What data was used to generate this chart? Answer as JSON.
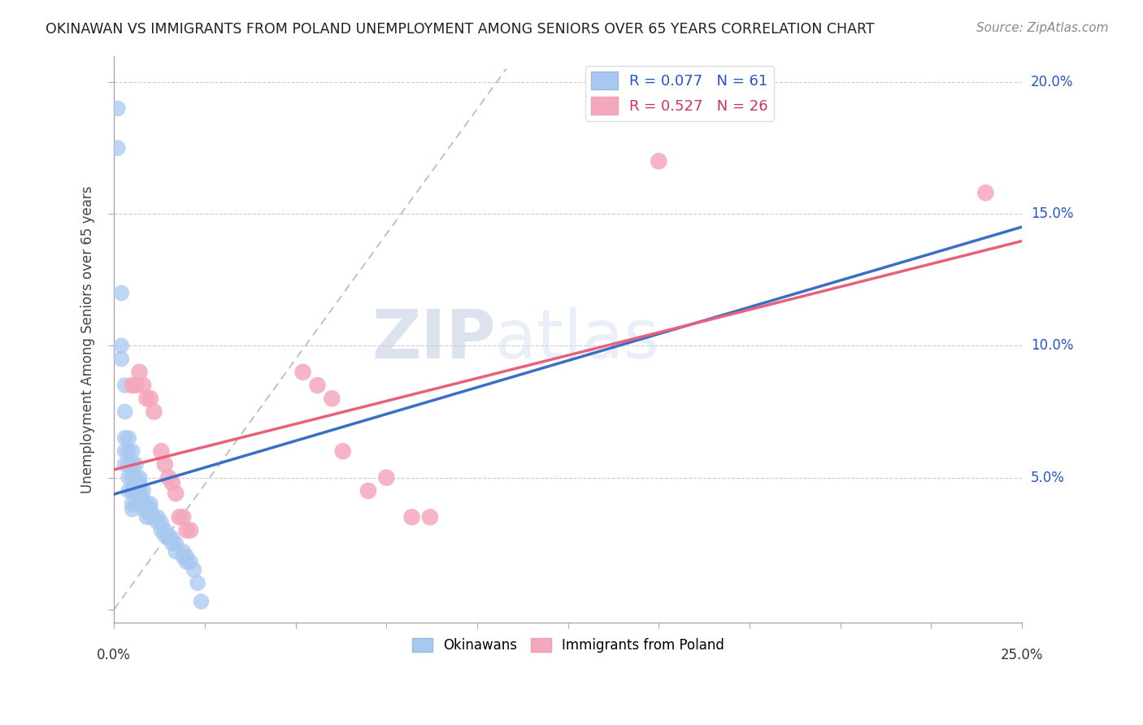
{
  "title": "OKINAWAN VS IMMIGRANTS FROM POLAND UNEMPLOYMENT AMONG SENIORS OVER 65 YEARS CORRELATION CHART",
  "source": "Source: ZipAtlas.com",
  "ylabel_label": "Unemployment Among Seniors over 65 years",
  "xlim": [
    0.0,
    0.25
  ],
  "ylim": [
    -0.005,
    0.21
  ],
  "watermark_zip": "ZIP",
  "watermark_atlas": "atlas",
  "group1_label": "Okinawans",
  "group2_label": "Immigrants from Poland",
  "group1_color": "#a8c8f0",
  "group2_color": "#f4a8bc",
  "group1_line_color": "#3a6fc4",
  "group2_line_color": "#e8607a",
  "group1_R": 0.077,
  "group2_R": 0.527,
  "group1_N": 61,
  "group2_N": 26,
  "okinawan_x": [
    0.001,
    0.001,
    0.002,
    0.002,
    0.002,
    0.003,
    0.003,
    0.003,
    0.003,
    0.003,
    0.004,
    0.004,
    0.004,
    0.004,
    0.004,
    0.005,
    0.005,
    0.005,
    0.005,
    0.005,
    0.005,
    0.005,
    0.006,
    0.006,
    0.006,
    0.006,
    0.007,
    0.007,
    0.007,
    0.007,
    0.008,
    0.008,
    0.008,
    0.008,
    0.009,
    0.009,
    0.009,
    0.01,
    0.01,
    0.01,
    0.011,
    0.012,
    0.012,
    0.013,
    0.013,
    0.014,
    0.014,
    0.015,
    0.015,
    0.016,
    0.016,
    0.017,
    0.017,
    0.019,
    0.019,
    0.02,
    0.02,
    0.021,
    0.022,
    0.023,
    0.024
  ],
  "okinawan_y": [
    0.19,
    0.175,
    0.12,
    0.1,
    0.095,
    0.085,
    0.075,
    0.065,
    0.06,
    0.055,
    0.065,
    0.06,
    0.055,
    0.05,
    0.045,
    0.06,
    0.055,
    0.05,
    0.045,
    0.045,
    0.04,
    0.038,
    0.055,
    0.05,
    0.045,
    0.04,
    0.05,
    0.048,
    0.045,
    0.04,
    0.045,
    0.042,
    0.04,
    0.038,
    0.04,
    0.038,
    0.035,
    0.04,
    0.038,
    0.035,
    0.035,
    0.035,
    0.033,
    0.033,
    0.03,
    0.03,
    0.028,
    0.028,
    0.027,
    0.027,
    0.025,
    0.025,
    0.022,
    0.022,
    0.02,
    0.02,
    0.018,
    0.018,
    0.015,
    0.01,
    0.003
  ],
  "poland_x": [
    0.005,
    0.006,
    0.007,
    0.008,
    0.009,
    0.01,
    0.011,
    0.013,
    0.014,
    0.015,
    0.016,
    0.017,
    0.018,
    0.019,
    0.02,
    0.021,
    0.052,
    0.056,
    0.06,
    0.063,
    0.07,
    0.075,
    0.082,
    0.087,
    0.15,
    0.24
  ],
  "poland_y": [
    0.085,
    0.085,
    0.09,
    0.085,
    0.08,
    0.08,
    0.075,
    0.06,
    0.055,
    0.05,
    0.048,
    0.044,
    0.035,
    0.035,
    0.03,
    0.03,
    0.09,
    0.085,
    0.08,
    0.06,
    0.045,
    0.05,
    0.035,
    0.035,
    0.17,
    0.158
  ],
  "ytick_positions": [
    0.0,
    0.05,
    0.1,
    0.15,
    0.2
  ],
  "ytick_right_labels": [
    "",
    "5.0%",
    "10.0%",
    "15.0%",
    "20.0%"
  ],
  "xtick_left_label": "0.0%",
  "xtick_right_label": "25.0%",
  "grid_color": "#cccccc",
  "background_color": "#ffffff",
  "title_color": "#222222",
  "axis_color": "#aaaaaa",
  "right_label_color": "#2255cc",
  "legend_text_color_1": "#2255cc",
  "legend_text_color_2": "#cc3366",
  "diag_line_color": "#aaaacc",
  "watermark_color": "#d0ddf0"
}
